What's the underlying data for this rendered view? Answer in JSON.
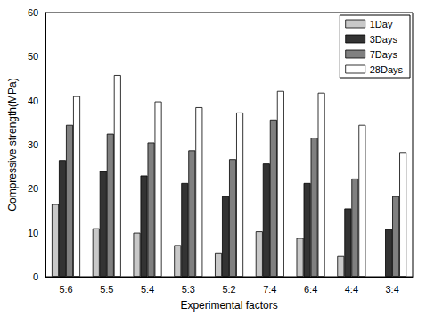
{
  "chart_data": {
    "type": "bar",
    "x_label": "Experimental factors",
    "y_label": "Compressive strength(MPa)",
    "categories": [
      "5:6",
      "5:5",
      "5:4",
      "5:3",
      "5:2",
      "7:4",
      "6:4",
      "4:4",
      "3:4"
    ],
    "series": [
      {
        "name": "1Day",
        "color": "#c8c8c8",
        "values": [
          16.5,
          11,
          10,
          7.2,
          5.5,
          10.3,
          8.8,
          4.7,
          null
        ]
      },
      {
        "name": "3Days",
        "color": "#333333",
        "values": [
          26.5,
          24,
          23,
          21.3,
          18.3,
          25.7,
          21.3,
          15.5,
          10.8
        ]
      },
      {
        "name": "7Days",
        "color": "#808080",
        "values": [
          34.5,
          32.5,
          30.5,
          28.7,
          26.7,
          35.7,
          31.6,
          22.3,
          18.3
        ]
      },
      {
        "name": "28Days",
        "color": "#ffffff",
        "values": [
          41,
          45.8,
          39.8,
          38.5,
          37.3,
          42.2,
          41.8,
          34.5,
          28.3
        ]
      }
    ],
    "ylim": [
      0,
      60
    ],
    "yticks": [
      0,
      10,
      20,
      30,
      40,
      50,
      60
    ],
    "grid": false,
    "legend": "upper right"
  }
}
